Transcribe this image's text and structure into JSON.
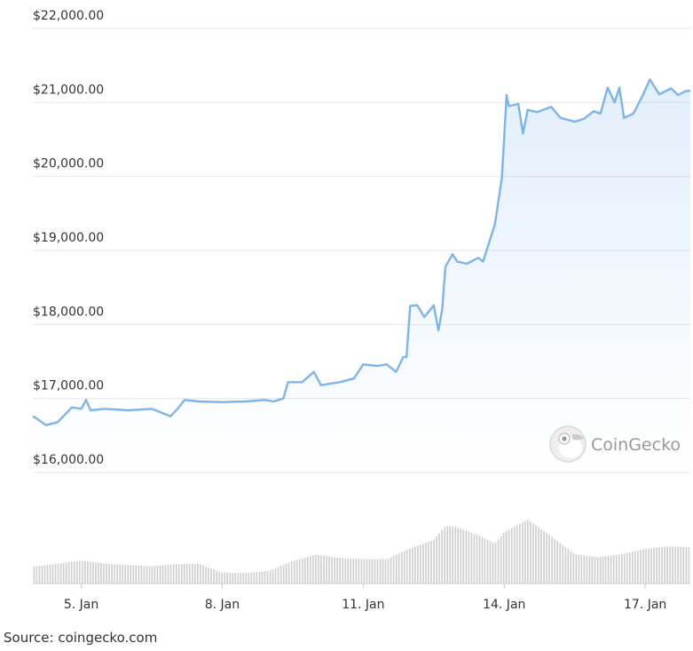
{
  "chart_data": {
    "type": "area",
    "series_color": "#7cb5ec",
    "ylim": [
      16000,
      22000
    ],
    "yticks": [
      {
        "value": 22000,
        "label": "$22,000.00"
      },
      {
        "value": 21000,
        "label": "$21,000.00"
      },
      {
        "value": 20000,
        "label": "$20,000.00"
      },
      {
        "value": 19000,
        "label": "$19,000.00"
      },
      {
        "value": 18000,
        "label": "$18,000.00"
      },
      {
        "value": 17000,
        "label": "$17,000.00"
      },
      {
        "value": 16000,
        "label": "$16,000.00"
      }
    ],
    "xlim": [
      3.97,
      17.96
    ],
    "xticks": [
      {
        "value": 5,
        "label": "5. Jan"
      },
      {
        "value": 8,
        "label": "8. Jan"
      },
      {
        "value": 11,
        "label": "11. Jan"
      },
      {
        "value": 14,
        "label": "14. Jan"
      },
      {
        "value": 17,
        "label": "17. Jan"
      }
    ],
    "price": [
      [
        3.97,
        16760
      ],
      [
        4.05,
        16730
      ],
      [
        4.25,
        16640
      ],
      [
        4.5,
        16680
      ],
      [
        4.8,
        16880
      ],
      [
        5.0,
        16860
      ],
      [
        5.1,
        16980
      ],
      [
        5.2,
        16840
      ],
      [
        5.5,
        16860
      ],
      [
        6.0,
        16840
      ],
      [
        6.5,
        16860
      ],
      [
        6.9,
        16760
      ],
      [
        7.05,
        16860
      ],
      [
        7.2,
        16980
      ],
      [
        7.5,
        16960
      ],
      [
        8.0,
        16950
      ],
      [
        8.5,
        16960
      ],
      [
        8.9,
        16980
      ],
      [
        9.1,
        16960
      ],
      [
        9.3,
        17000
      ],
      [
        9.4,
        17220
      ],
      [
        9.7,
        17220
      ],
      [
        9.95,
        17360
      ],
      [
        10.1,
        17180
      ],
      [
        10.5,
        17220
      ],
      [
        10.8,
        17270
      ],
      [
        11.0,
        17460
      ],
      [
        11.3,
        17440
      ],
      [
        11.5,
        17460
      ],
      [
        11.7,
        17360
      ],
      [
        11.85,
        17560
      ],
      [
        11.92,
        17560
      ],
      [
        12.0,
        18250
      ],
      [
        12.15,
        18260
      ],
      [
        12.3,
        18100
      ],
      [
        12.5,
        18260
      ],
      [
        12.6,
        17920
      ],
      [
        12.68,
        18200
      ],
      [
        12.75,
        18780
      ],
      [
        12.9,
        18950
      ],
      [
        13.0,
        18850
      ],
      [
        13.2,
        18820
      ],
      [
        13.45,
        18900
      ],
      [
        13.55,
        18850
      ],
      [
        13.65,
        19050
      ],
      [
        13.8,
        19350
      ],
      [
        13.95,
        19980
      ],
      [
        14.05,
        21100
      ],
      [
        14.1,
        20950
      ],
      [
        14.3,
        20980
      ],
      [
        14.4,
        20580
      ],
      [
        14.5,
        20900
      ],
      [
        14.7,
        20870
      ],
      [
        15.0,
        20940
      ],
      [
        15.2,
        20790
      ],
      [
        15.5,
        20740
      ],
      [
        15.7,
        20780
      ],
      [
        15.9,
        20880
      ],
      [
        16.05,
        20850
      ],
      [
        16.2,
        21200
      ],
      [
        16.35,
        21000
      ],
      [
        16.45,
        21200
      ],
      [
        16.55,
        20790
      ],
      [
        16.75,
        20850
      ],
      [
        16.95,
        21100
      ],
      [
        17.1,
        21310
      ],
      [
        17.3,
        21110
      ],
      [
        17.55,
        21190
      ],
      [
        17.7,
        21100
      ],
      [
        17.85,
        21150
      ],
      [
        17.96,
        21160
      ]
    ],
    "volume": [
      [
        3.97,
        0.26
      ],
      [
        4.5,
        0.31
      ],
      [
        5.0,
        0.36
      ],
      [
        5.5,
        0.31
      ],
      [
        6.0,
        0.29
      ],
      [
        6.5,
        0.27
      ],
      [
        7.0,
        0.3
      ],
      [
        7.5,
        0.31
      ],
      [
        8.0,
        0.17
      ],
      [
        8.5,
        0.16
      ],
      [
        9.0,
        0.2
      ],
      [
        9.5,
        0.35
      ],
      [
        10.0,
        0.45
      ],
      [
        10.5,
        0.4
      ],
      [
        11.0,
        0.38
      ],
      [
        11.5,
        0.38
      ],
      [
        12.0,
        0.55
      ],
      [
        12.5,
        0.68
      ],
      [
        12.75,
        0.9
      ],
      [
        13.0,
        0.88
      ],
      [
        13.5,
        0.74
      ],
      [
        13.8,
        0.62
      ],
      [
        14.0,
        0.8
      ],
      [
        14.5,
        1.0
      ],
      [
        15.0,
        0.74
      ],
      [
        15.5,
        0.46
      ],
      [
        16.0,
        0.41
      ],
      [
        16.5,
        0.46
      ],
      [
        17.0,
        0.54
      ],
      [
        17.5,
        0.58
      ],
      [
        17.96,
        0.57
      ]
    ]
  },
  "watermark": {
    "text": "CoinGecko",
    "icon": "coingecko-gecko-icon"
  },
  "source_text": "Source: coingecko.com"
}
